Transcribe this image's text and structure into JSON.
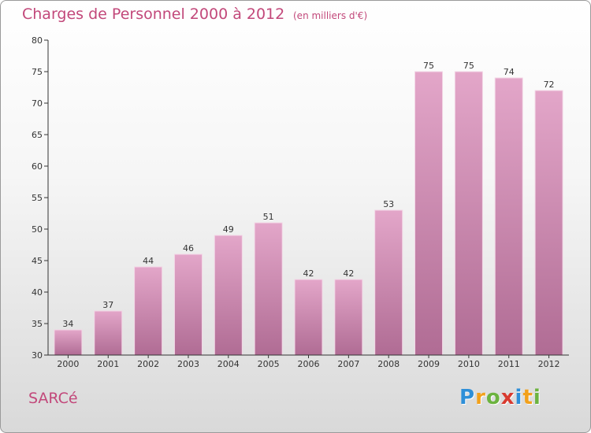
{
  "header": {
    "title": "Charges de Personnel 2000 à 2012",
    "subtitle": "(en milliers d'€)"
  },
  "footer": {
    "town": "SARCé",
    "logo_letters": [
      "P",
      "r",
      "o",
      "x",
      "i",
      "t",
      "i"
    ],
    "logo_colors": [
      "#2e8fd8",
      "#f2a11c",
      "#6cb33f",
      "#d83a2f",
      "#2e8fd8",
      "#f2a11c",
      "#6cb33f"
    ]
  },
  "colors": {
    "bar_top": "#e3a6c9",
    "bar_bottom": "#b06c94",
    "axis": "#333333",
    "title": "#c2487a"
  },
  "chart_data": {
    "type": "bar",
    "title": "Charges de Personnel 2000 à 2012",
    "subtitle": "(en milliers d'€)",
    "categories": [
      "2000",
      "2001",
      "2002",
      "2003",
      "2004",
      "2005",
      "2006",
      "2007",
      "2008",
      "2009",
      "2010",
      "2011",
      "2012"
    ],
    "values": [
      34,
      37,
      44,
      46,
      49,
      51,
      42,
      42,
      53,
      75,
      75,
      74,
      72
    ],
    "xlabel": "",
    "ylabel": "",
    "ylim": [
      30,
      80
    ],
    "yticks": [
      30,
      35,
      40,
      45,
      50,
      55,
      60,
      65,
      70,
      75,
      80
    ],
    "grid": false,
    "legend": "none",
    "data_labels": true
  }
}
